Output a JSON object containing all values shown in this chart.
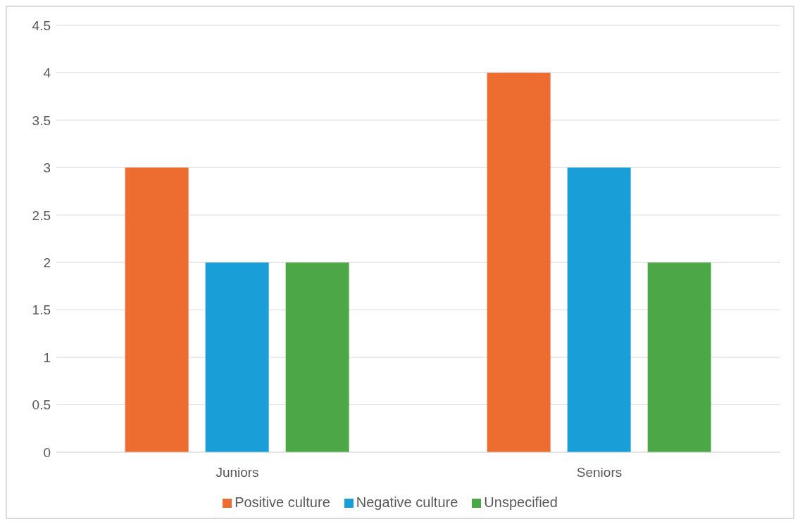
{
  "chart_data": {
    "type": "bar",
    "categories": [
      "Juniors",
      "Seniors"
    ],
    "series": [
      {
        "name": "Positive culture",
        "color": "#ed6d31",
        "values": [
          3,
          4
        ]
      },
      {
        "name": "Negative culture",
        "color": "#1a9ed7",
        "values": [
          2,
          3
        ]
      },
      {
        "name": "Unspecified",
        "color": "#4ca846",
        "values": [
          2,
          2
        ]
      }
    ],
    "ylim": [
      0,
      4.5
    ],
    "yticks": [
      0,
      0.5,
      1,
      1.5,
      2,
      2.5,
      3,
      3.5,
      4,
      4.5
    ],
    "grid": "y",
    "legend": "bottom"
  }
}
